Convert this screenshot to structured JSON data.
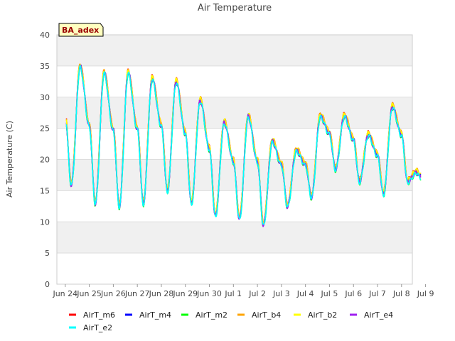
{
  "chart_data": {
    "type": "line",
    "title": "Air Temperature",
    "ylabel": "Air Temperature (C)",
    "xlabel": "",
    "ylim": [
      0,
      40
    ],
    "yticks": [
      0,
      5,
      10,
      15,
      20,
      25,
      30,
      35,
      40
    ],
    "xlim": [
      "2024-06-24",
      "2024-07-09"
    ],
    "xtick_labels": [
      "Jun 24",
      "Jun 25",
      "Jun 26",
      "Jun 27",
      "Jun 28",
      "Jun 29",
      "Jun 30",
      "Jul 1",
      "Jul 2",
      "Jul 3",
      "Jul 4",
      "Jul 5",
      "Jul 6",
      "Jul 7",
      "Jul 8",
      "Jul 9"
    ],
    "site_label": "BA_adex",
    "background_bands": true,
    "legend_position": "bottom",
    "daily_extremes": [
      {
        "date": "2024-06-24",
        "min": 16,
        "max": 35
      },
      {
        "date": "2024-06-25",
        "min": 13,
        "max": 34
      },
      {
        "date": "2024-06-26",
        "min": 12.5,
        "max": 34
      },
      {
        "date": "2024-06-27",
        "min": 13,
        "max": 33
      },
      {
        "date": "2024-06-28",
        "min": 15,
        "max": 32.5
      },
      {
        "date": "2024-06-29",
        "min": 13,
        "max": 29.5
      },
      {
        "date": "2024-06-30",
        "min": 11,
        "max": 26
      },
      {
        "date": "2024-07-01",
        "min": 10.5,
        "max": 27
      },
      {
        "date": "2024-07-02",
        "min": 9.5,
        "max": 23
      },
      {
        "date": "2024-07-03",
        "min": 12.5,
        "max": 21.5
      },
      {
        "date": "2024-07-04",
        "min": 14,
        "max": 27
      },
      {
        "date": "2024-07-05",
        "min": 18.5,
        "max": 27
      },
      {
        "date": "2024-07-06",
        "min": 16.5,
        "max": 24
      },
      {
        "date": "2024-07-07",
        "min": 14.5,
        "max": 28.5
      },
      {
        "date": "2024-07-08",
        "min": 16.5,
        "max": 18
      }
    ],
    "series": [
      {
        "name": "AirT_m6",
        "color": "#ff0000",
        "offset": 0.35
      },
      {
        "name": "AirT_m4",
        "color": "#0000ff",
        "offset": 0.1
      },
      {
        "name": "AirT_m2",
        "color": "#00ff00",
        "offset": -0.3
      },
      {
        "name": "AirT_b4",
        "color": "#ffa500",
        "offset": 0.2
      },
      {
        "name": "AirT_b2",
        "color": "#ffff00",
        "offset": 0.3
      },
      {
        "name": "AirT_e4",
        "color": "#a020f0",
        "offset": -0.1
      },
      {
        "name": "AirT_e2",
        "color": "#00ffff",
        "offset": -0.2
      }
    ]
  }
}
